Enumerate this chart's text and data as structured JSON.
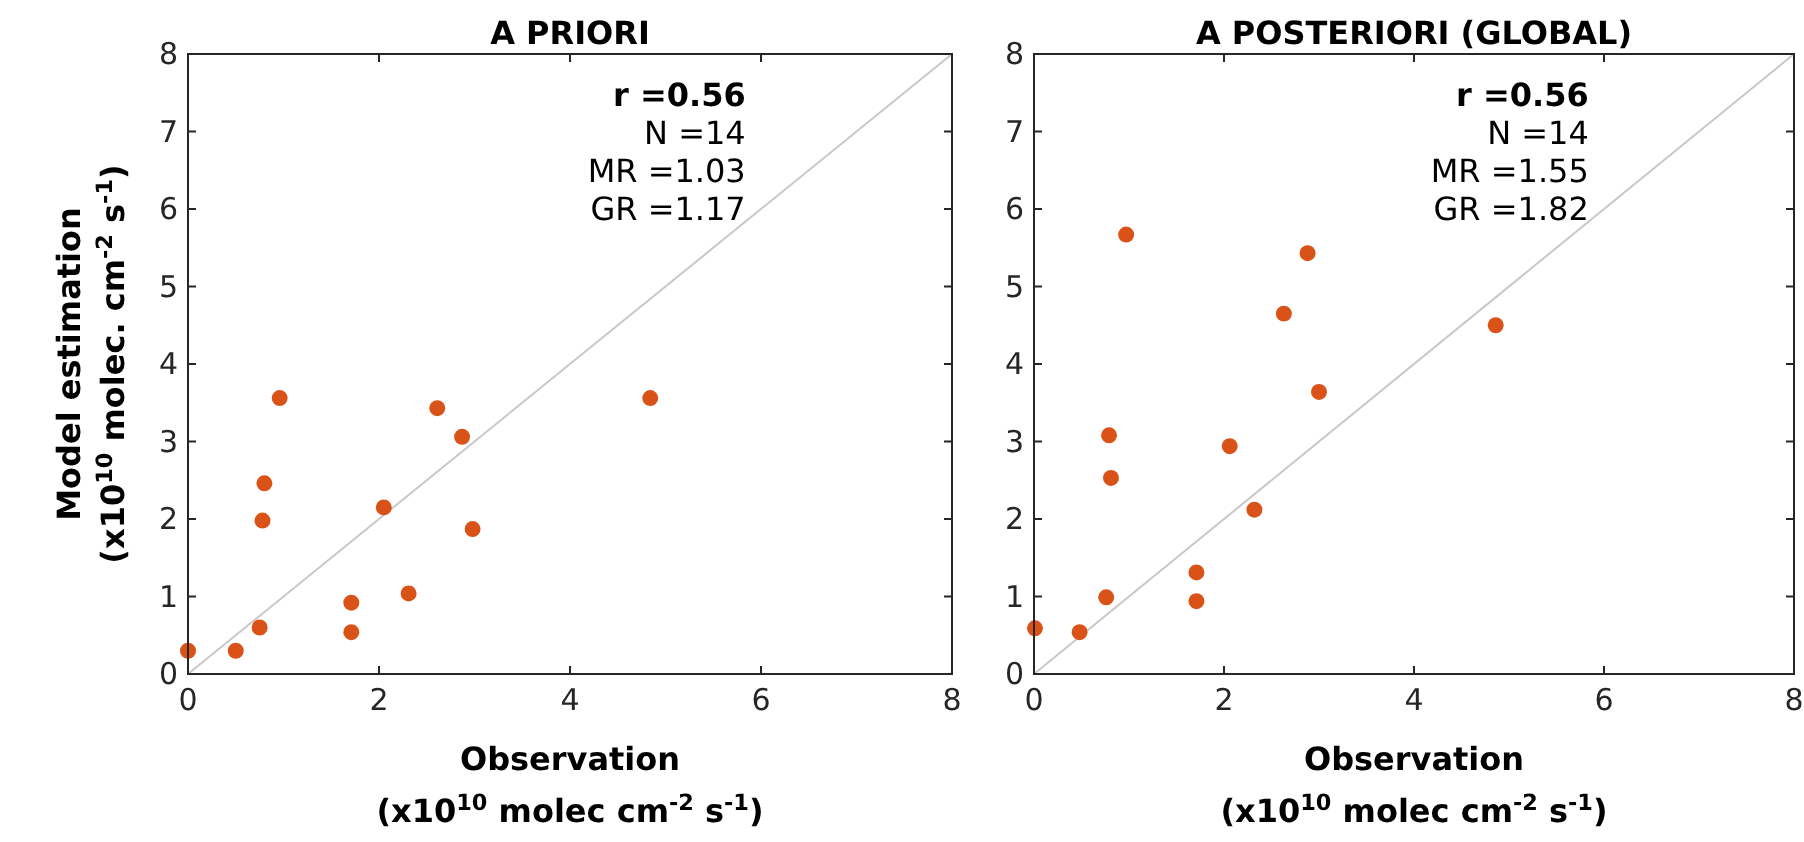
{
  "chart_data": [
    {
      "type": "scatter",
      "title": "A PRIORI",
      "xlabel": "Observation\n(x10$^{10}$ molec cm$^{-2}$ s$^{-1}$)",
      "ylabel": "Model estimation\n(x10$^{10}$ molec. cm$^{-2}$ s$^{-1}$)",
      "annotations": [
        "r =0.56",
        "N =14",
        "MR =1.03",
        "GR =1.17"
      ],
      "xlim": [
        0,
        8
      ],
      "ylim": [
        0,
        8
      ],
      "xticks": [
        0,
        2,
        4,
        6,
        8
      ],
      "yticks": [
        0,
        1,
        2,
        3,
        4,
        5,
        6,
        7,
        8
      ],
      "marker": "circle",
      "grid": false,
      "series": [
        {
          "type": "line",
          "marker": "none",
          "color": "#c8c8c8",
          "x": [
            0,
            8
          ],
          "values": [
            0,
            8
          ]
        },
        {
          "color": "#d95319",
          "x": [
            0.0,
            0.5,
            0.75,
            0.78,
            0.8,
            0.96,
            1.71,
            1.71,
            2.05,
            2.31,
            2.61,
            2.87,
            2.98,
            4.84
          ],
          "values": [
            0.3,
            0.3,
            0.6,
            1.98,
            2.46,
            3.56,
            0.92,
            0.54,
            2.15,
            1.04,
            3.43,
            3.06,
            1.87,
            3.56
          ]
        }
      ]
    },
    {
      "type": "scatter",
      "title": "A POSTERIORI (GLOBAL)",
      "xlabel": "Observation\n(x10$^{10}$ molec cm$^{-2}$ s$^{-1}$)",
      "annotations": [
        "r =0.56",
        "N =14",
        "MR =1.55",
        "GR =1.82"
      ],
      "xlim": [
        0,
        8
      ],
      "ylim": [
        0,
        8
      ],
      "xticks": [
        0,
        2,
        4,
        6,
        8
      ],
      "yticks": [
        0,
        1,
        2,
        3,
        4,
        5,
        6,
        7,
        8
      ],
      "marker": "circle",
      "grid": false,
      "series": [
        {
          "type": "line",
          "marker": "none",
          "color": "#c8c8c8",
          "x": [
            0,
            8
          ],
          "values": [
            0,
            8
          ]
        },
        {
          "color": "#d95319",
          "x": [
            0.01,
            0.48,
            0.76,
            0.79,
            0.81,
            0.97,
            1.71,
            1.71,
            2.06,
            2.32,
            2.63,
            2.88,
            3.0,
            4.86
          ],
          "values": [
            0.59,
            0.54,
            0.99,
            3.08,
            2.53,
            5.67,
            1.31,
            0.94,
            2.94,
            2.12,
            4.65,
            5.43,
            3.64,
            4.5
          ]
        }
      ]
    }
  ]
}
